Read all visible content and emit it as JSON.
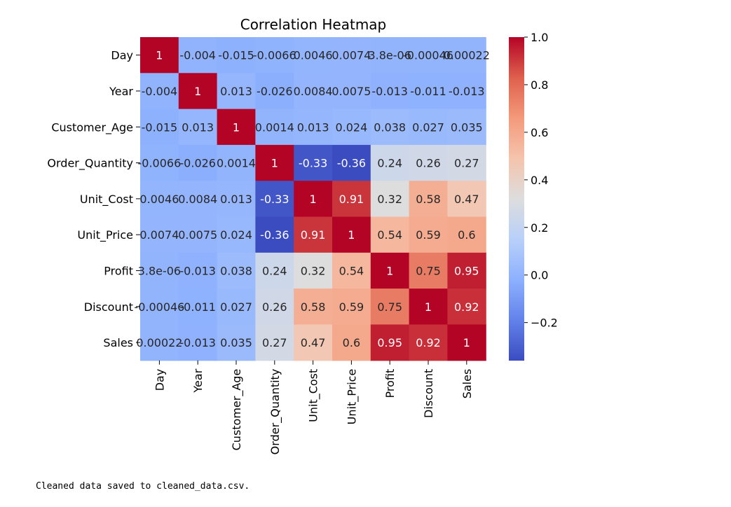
{
  "chart_data": {
    "type": "heatmap",
    "title": "Correlation Heatmap",
    "rows": [
      "Day",
      "Year",
      "Customer_Age",
      "Order_Quantity",
      "Unit_Cost",
      "Unit_Price",
      "Profit",
      "Discount",
      "Sales"
    ],
    "columns": [
      "Day",
      "Year",
      "Customer_Age",
      "Order_Quantity",
      "Unit_Cost",
      "Unit_Price",
      "Profit",
      "Discount",
      "Sales"
    ],
    "values": [
      [
        1,
        -0.004,
        -0.015,
        -0.0066,
        0.0046,
        0.0074,
        3.8e-06,
        -0.00046,
        0.00022
      ],
      [
        -0.004,
        1,
        0.013,
        -0.026,
        0.0084,
        0.0075,
        -0.013,
        -0.011,
        -0.013
      ],
      [
        -0.015,
        0.013,
        1,
        0.0014,
        0.013,
        0.024,
        0.038,
        0.027,
        0.035
      ],
      [
        -0.0066,
        -0.026,
        0.0014,
        1,
        -0.33,
        -0.36,
        0.24,
        0.26,
        0.27
      ],
      [
        0.0046,
        0.0084,
        0.013,
        -0.33,
        1,
        0.91,
        0.32,
        0.58,
        0.47
      ],
      [
        0.0074,
        0.0075,
        0.024,
        -0.36,
        0.91,
        1,
        0.54,
        0.59,
        0.6
      ],
      [
        3.8e-06,
        -0.013,
        0.038,
        0.24,
        0.32,
        0.54,
        1,
        0.75,
        0.95
      ],
      [
        -0.00046,
        -0.011,
        0.027,
        0.26,
        0.58,
        0.59,
        0.75,
        1,
        0.92
      ],
      [
        0.00022,
        -0.013,
        0.035,
        0.27,
        0.47,
        0.6,
        0.95,
        0.92,
        1
      ]
    ],
    "labels": [
      [
        "1",
        "-0.004",
        "-0.015",
        "-0.0066",
        "0.0046",
        "0.0074",
        "3.8e-06",
        "-0.00046",
        "0.00022"
      ],
      [
        "-0.004",
        "1",
        "0.013",
        "-0.026",
        "0.0084",
        "0.0075",
        "-0.013",
        "-0.011",
        "-0.013"
      ],
      [
        "-0.015",
        "0.013",
        "1",
        "0.0014",
        "0.013",
        "0.024",
        "0.038",
        "0.027",
        "0.035"
      ],
      [
        "-0.0066",
        "-0.026",
        "0.0014",
        "1",
        "-0.33",
        "-0.36",
        "0.24",
        "0.26",
        "0.27"
      ],
      [
        "0.0046",
        "0.0084",
        "0.013",
        "-0.33",
        "1",
        "0.91",
        "0.32",
        "0.58",
        "0.47"
      ],
      [
        "0.0074",
        "0.0075",
        "0.024",
        "-0.36",
        "0.91",
        "1",
        "0.54",
        "0.59",
        "0.6"
      ],
      [
        "3.8e-06",
        "-0.013",
        "0.038",
        "0.24",
        "0.32",
        "0.54",
        "1",
        "0.75",
        "0.95"
      ],
      [
        "-0.00046",
        "-0.011",
        "0.027",
        "0.26",
        "0.58",
        "0.59",
        "0.75",
        "1",
        "0.92"
      ],
      [
        "0.00022",
        "-0.013",
        "0.035",
        "0.27",
        "0.47",
        "0.6",
        "0.95",
        "0.92",
        "1"
      ]
    ],
    "colormap": "coolwarm",
    "color_range": [
      -0.36,
      1
    ],
    "colorbar_ticks": [
      1.0,
      0.8,
      0.6,
      0.4,
      0.2,
      0.0,
      -0.2
    ],
    "colorbar_tick_labels": [
      "1.0",
      "0.8",
      "0.6",
      "0.4",
      "0.2",
      "0.0",
      "−0.2"
    ],
    "colors": {
      "low": "#3b4cc0",
      "mid": "#dddddd",
      "high": "#b40426"
    },
    "legend": "colorbar-right"
  },
  "output_text": "Cleaned data saved to cleaned_data.csv."
}
